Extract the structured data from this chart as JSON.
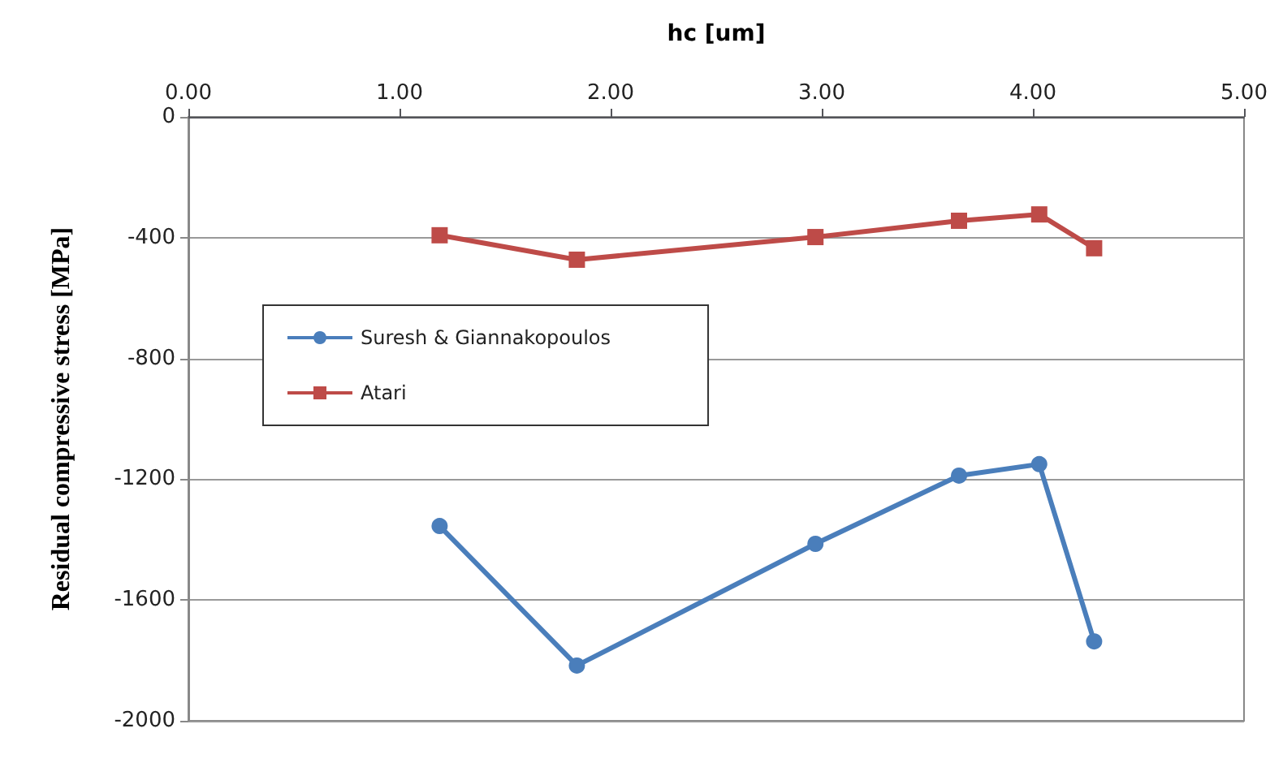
{
  "chart_data": {
    "type": "line",
    "xlabel": "hc [um]",
    "ylabel": "Residual compressive stress [MPa]",
    "xlim": [
      0,
      5
    ],
    "xticks": [
      {
        "value": 0,
        "label": "0.00"
      },
      {
        "value": 1,
        "label": "1.00"
      },
      {
        "value": 2,
        "label": "2.00"
      },
      {
        "value": 3,
        "label": "3.00"
      },
      {
        "value": 4,
        "label": "4.00"
      },
      {
        "value": 5,
        "label": "5.00"
      }
    ],
    "ylim": [
      -2000,
      0
    ],
    "yticks": [
      -2000,
      -1600,
      -1200,
      -800,
      -400,
      0
    ],
    "grid": "y",
    "legend": "left",
    "series": [
      {
        "name": "Suresh & Giannakopoulos",
        "color": "#4a7ebb",
        "marker": "circle",
        "x": [
          1.19,
          1.84,
          2.97,
          3.65,
          4.03,
          4.29
        ],
        "values": [
          -1355,
          -1817,
          -1414,
          -1188,
          -1150,
          -1737
        ]
      },
      {
        "name": "Atari",
        "color": "#be4b48",
        "marker": "square",
        "x": [
          1.19,
          1.84,
          2.97,
          3.65,
          4.03,
          4.29
        ],
        "values": [
          -392,
          -473,
          -398,
          -344,
          -323,
          -435
        ]
      }
    ]
  }
}
